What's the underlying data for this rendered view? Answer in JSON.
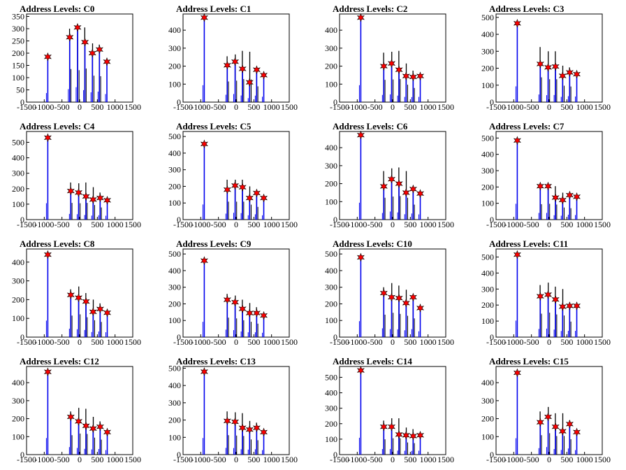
{
  "chart_data": [
    {
      "type": "bar",
      "title": "Address Levels: C0",
      "x_ticks": [
        -1500,
        -1000,
        -500,
        0,
        500,
        1000,
        1500
      ],
      "y_ticks": [
        0,
        50,
        100,
        150,
        200,
        250,
        300,
        350
      ],
      "ylim": [
        0,
        360
      ],
      "peaks": [
        {
          "x": -900,
          "y": 185
        },
        {
          "x": -280,
          "y": 265
        },
        {
          "x": -60,
          "y": 305
        },
        {
          "x": 150,
          "y": 245
        },
        {
          "x": 360,
          "y": 200
        },
        {
          "x": 560,
          "y": 215
        },
        {
          "x": 770,
          "y": 165
        }
      ],
      "background_bars": [
        {
          "x": -285,
          "y": 300
        },
        {
          "x": -55,
          "y": 290
        },
        {
          "x": 145,
          "y": 305
        },
        {
          "x": 365,
          "y": 240
        },
        {
          "x": 555,
          "y": 235
        }
      ]
    },
    {
      "type": "bar",
      "title": "Address Levels: C1",
      "x_ticks": [
        -1500,
        -1000,
        -500,
        0,
        500,
        1000,
        1500
      ],
      "y_ticks": [
        0,
        100,
        200,
        300,
        400
      ],
      "ylim": [
        0,
        490
      ],
      "peaks": [
        {
          "x": -900,
          "y": 470
        },
        {
          "x": -250,
          "y": 205
        },
        {
          "x": -30,
          "y": 225
        },
        {
          "x": 180,
          "y": 185
        },
        {
          "x": 380,
          "y": 110
        },
        {
          "x": 580,
          "y": 180
        },
        {
          "x": 780,
          "y": 150
        }
      ],
      "background_bars": [
        {
          "x": -255,
          "y": 255
        },
        {
          "x": -25,
          "y": 265
        },
        {
          "x": 175,
          "y": 285
        },
        {
          "x": 385,
          "y": 280
        },
        {
          "x": 575,
          "y": 195
        }
      ]
    },
    {
      "type": "bar",
      "title": "Address Levels: C2",
      "x_ticks": [
        -1500,
        -1000,
        -500,
        0,
        500,
        1000,
        1500
      ],
      "y_ticks": [
        0,
        100,
        200,
        300,
        400
      ],
      "ylim": [
        0,
        490
      ],
      "peaks": [
        {
          "x": -900,
          "y": 470
        },
        {
          "x": -250,
          "y": 200
        },
        {
          "x": -30,
          "y": 215
        },
        {
          "x": 180,
          "y": 180
        },
        {
          "x": 380,
          "y": 145
        },
        {
          "x": 580,
          "y": 140
        },
        {
          "x": 780,
          "y": 145
        }
      ],
      "background_bars": [
        {
          "x": -255,
          "y": 275
        },
        {
          "x": -25,
          "y": 280
        },
        {
          "x": 175,
          "y": 285
        },
        {
          "x": 385,
          "y": 215
        },
        {
          "x": 575,
          "y": 175
        }
      ]
    },
    {
      "type": "bar",
      "title": "Address Levels: C3",
      "x_ticks": [
        -1500,
        -1000,
        -500,
        0,
        500,
        1000,
        1500
      ],
      "y_ticks": [
        0,
        100,
        200,
        300,
        400,
        500
      ],
      "ylim": [
        0,
        520
      ],
      "peaks": [
        {
          "x": -900,
          "y": 465
        },
        {
          "x": -250,
          "y": 225
        },
        {
          "x": -30,
          "y": 205
        },
        {
          "x": 180,
          "y": 210
        },
        {
          "x": 380,
          "y": 155
        },
        {
          "x": 580,
          "y": 175
        },
        {
          "x": 780,
          "y": 165
        }
      ],
      "background_bars": [
        {
          "x": -255,
          "y": 325
        },
        {
          "x": -25,
          "y": 300
        },
        {
          "x": 175,
          "y": 300
        },
        {
          "x": 385,
          "y": 215
        },
        {
          "x": 575,
          "y": 205
        }
      ]
    },
    {
      "type": "bar",
      "title": "Address Levels: C4",
      "x_ticks": [
        -1500,
        -1000,
        -500,
        0,
        500,
        1000,
        1500
      ],
      "y_ticks": [
        0,
        100,
        200,
        300,
        400,
        500
      ],
      "ylim": [
        0,
        570
      ],
      "peaks": [
        {
          "x": -900,
          "y": 530
        },
        {
          "x": -250,
          "y": 185
        },
        {
          "x": -30,
          "y": 175
        },
        {
          "x": 180,
          "y": 150
        },
        {
          "x": 380,
          "y": 130
        },
        {
          "x": 580,
          "y": 140
        },
        {
          "x": 780,
          "y": 125
        }
      ],
      "background_bars": [
        {
          "x": -255,
          "y": 240
        },
        {
          "x": -25,
          "y": 235
        },
        {
          "x": 175,
          "y": 240
        },
        {
          "x": 385,
          "y": 210
        },
        {
          "x": 575,
          "y": 175
        }
      ]
    },
    {
      "type": "bar",
      "title": "Address Levels: C5",
      "x_ticks": [
        -1500,
        -1000,
        -500,
        0,
        500,
        1000,
        1500
      ],
      "y_ticks": [
        0,
        100,
        200,
        300,
        400,
        500
      ],
      "ylim": [
        0,
        530
      ],
      "peaks": [
        {
          "x": -900,
          "y": 455
        },
        {
          "x": -250,
          "y": 180
        },
        {
          "x": -30,
          "y": 205
        },
        {
          "x": 180,
          "y": 195
        },
        {
          "x": 380,
          "y": 130
        },
        {
          "x": 580,
          "y": 160
        },
        {
          "x": 780,
          "y": 130
        }
      ],
      "background_bars": [
        {
          "x": -255,
          "y": 240
        },
        {
          "x": -25,
          "y": 240
        },
        {
          "x": 175,
          "y": 240
        },
        {
          "x": 385,
          "y": 200
        },
        {
          "x": 575,
          "y": 170
        }
      ]
    },
    {
      "type": "bar",
      "title": "Address Levels: C6",
      "x_ticks": [
        -1500,
        -1000,
        -500,
        0,
        500,
        1000,
        1500
      ],
      "y_ticks": [
        0,
        100,
        200,
        300,
        400
      ],
      "ylim": [
        0,
        490
      ],
      "peaks": [
        {
          "x": -900,
          "y": 470
        },
        {
          "x": -250,
          "y": 185
        },
        {
          "x": -30,
          "y": 225
        },
        {
          "x": 180,
          "y": 200
        },
        {
          "x": 380,
          "y": 150
        },
        {
          "x": 580,
          "y": 170
        },
        {
          "x": 780,
          "y": 145
        }
      ],
      "background_bars": [
        {
          "x": -255,
          "y": 270
        },
        {
          "x": -25,
          "y": 285
        },
        {
          "x": 175,
          "y": 290
        },
        {
          "x": 385,
          "y": 270
        },
        {
          "x": 575,
          "y": 185
        }
      ]
    },
    {
      "type": "bar",
      "title": "Address Levels: C7",
      "x_ticks": [
        -1500,
        -1000,
        -500,
        0,
        500,
        1000,
        1500
      ],
      "y_ticks": [
        0,
        100,
        200,
        300,
        400,
        500
      ],
      "ylim": [
        0,
        540
      ],
      "peaks": [
        {
          "x": -900,
          "y": 485
        },
        {
          "x": -250,
          "y": 205
        },
        {
          "x": -30,
          "y": 205
        },
        {
          "x": 180,
          "y": 135
        },
        {
          "x": 380,
          "y": 120
        },
        {
          "x": 580,
          "y": 150
        },
        {
          "x": 780,
          "y": 140
        }
      ],
      "background_bars": [
        {
          "x": -255,
          "y": 210
        },
        {
          "x": -25,
          "y": 215
        },
        {
          "x": 175,
          "y": 205
        },
        {
          "x": 385,
          "y": 165
        },
        {
          "x": 575,
          "y": 155
        }
      ]
    },
    {
      "type": "bar",
      "title": "Address Levels: C8",
      "x_ticks": [
        -1500,
        -1000,
        -500,
        0,
        500,
        1000,
        1500
      ],
      "y_ticks": [
        0,
        100,
        200,
        300,
        400
      ],
      "ylim": [
        0,
        470
      ],
      "peaks": [
        {
          "x": -900,
          "y": 440
        },
        {
          "x": -250,
          "y": 225
        },
        {
          "x": -30,
          "y": 210
        },
        {
          "x": 180,
          "y": 190
        },
        {
          "x": 380,
          "y": 135
        },
        {
          "x": 580,
          "y": 150
        },
        {
          "x": 780,
          "y": 130
        }
      ],
      "background_bars": [
        {
          "x": -255,
          "y": 255
        },
        {
          "x": -25,
          "y": 270
        },
        {
          "x": 175,
          "y": 235
        },
        {
          "x": 385,
          "y": 200
        },
        {
          "x": 575,
          "y": 180
        }
      ]
    },
    {
      "type": "bar",
      "title": "Address Levels: C9",
      "x_ticks": [
        -1500,
        -1000,
        -500,
        0,
        500,
        1000,
        1500
      ],
      "y_ticks": [
        0,
        100,
        200,
        300,
        400,
        500
      ],
      "ylim": [
        0,
        530
      ],
      "peaks": [
        {
          "x": -900,
          "y": 460
        },
        {
          "x": -250,
          "y": 225
        },
        {
          "x": -30,
          "y": 210
        },
        {
          "x": 180,
          "y": 170
        },
        {
          "x": 380,
          "y": 145
        },
        {
          "x": 580,
          "y": 145
        },
        {
          "x": 780,
          "y": 130
        }
      ],
      "background_bars": [
        {
          "x": -255,
          "y": 260
        },
        {
          "x": -25,
          "y": 250
        },
        {
          "x": 175,
          "y": 225
        },
        {
          "x": 385,
          "y": 205
        },
        {
          "x": 575,
          "y": 180
        }
      ]
    },
    {
      "type": "bar",
      "title": "Address Levels: C10",
      "x_ticks": [
        -1500,
        -1000,
        -500,
        0,
        500,
        1000,
        1500
      ],
      "y_ticks": [
        0,
        100,
        200,
        300,
        400,
        500
      ],
      "ylim": [
        0,
        530
      ],
      "peaks": [
        {
          "x": -900,
          "y": 480
        },
        {
          "x": -250,
          "y": 265
        },
        {
          "x": -30,
          "y": 240
        },
        {
          "x": 180,
          "y": 235
        },
        {
          "x": 380,
          "y": 205
        },
        {
          "x": 580,
          "y": 240
        },
        {
          "x": 780,
          "y": 175
        }
      ],
      "background_bars": [
        {
          "x": -255,
          "y": 300
        },
        {
          "x": -25,
          "y": 325
        },
        {
          "x": 175,
          "y": 310
        },
        {
          "x": 385,
          "y": 285
        },
        {
          "x": 575,
          "y": 250
        }
      ]
    },
    {
      "type": "bar",
      "title": "Address Levels: C11",
      "x_ticks": [
        -1500,
        -1000,
        -500,
        0,
        500,
        1000,
        1500
      ],
      "y_ticks": [
        0,
        100,
        200,
        300,
        400,
        500
      ],
      "ylim": [
        0,
        550
      ],
      "peaks": [
        {
          "x": -900,
          "y": 515
        },
        {
          "x": -250,
          "y": 255
        },
        {
          "x": -30,
          "y": 265
        },
        {
          "x": 180,
          "y": 235
        },
        {
          "x": 380,
          "y": 190
        },
        {
          "x": 580,
          "y": 195
        },
        {
          "x": 780,
          "y": 195
        }
      ],
      "background_bars": [
        {
          "x": -255,
          "y": 325
        },
        {
          "x": -25,
          "y": 340
        },
        {
          "x": 175,
          "y": 315
        },
        {
          "x": 385,
          "y": 300
        },
        {
          "x": 575,
          "y": 215
        }
      ]
    },
    {
      "type": "bar",
      "title": "Address Levels: C12",
      "x_ticks": [
        -1500,
        -1000,
        -500,
        0,
        500,
        1000,
        1500
      ],
      "y_ticks": [
        0,
        100,
        200,
        300,
        400
      ],
      "ylim": [
        0,
        490
      ],
      "peaks": [
        {
          "x": -900,
          "y": 460
        },
        {
          "x": -250,
          "y": 210
        },
        {
          "x": -30,
          "y": 185
        },
        {
          "x": 180,
          "y": 160
        },
        {
          "x": 380,
          "y": 145
        },
        {
          "x": 580,
          "y": 155
        },
        {
          "x": 780,
          "y": 125
        }
      ],
      "background_bars": [
        {
          "x": -255,
          "y": 240
        },
        {
          "x": -25,
          "y": 260
        },
        {
          "x": 175,
          "y": 255
        },
        {
          "x": 385,
          "y": 210
        },
        {
          "x": 575,
          "y": 185
        }
      ]
    },
    {
      "type": "bar",
      "title": "Address Levels: C13",
      "x_ticks": [
        -1500,
        -1000,
        -500,
        0,
        500,
        1000,
        1500
      ],
      "y_ticks": [
        0,
        100,
        200,
        300,
        400,
        500
      ],
      "ylim": [
        0,
        510
      ],
      "peaks": [
        {
          "x": -900,
          "y": 480
        },
        {
          "x": -250,
          "y": 195
        },
        {
          "x": -30,
          "y": 190
        },
        {
          "x": 180,
          "y": 155
        },
        {
          "x": 380,
          "y": 145
        },
        {
          "x": 580,
          "y": 155
        },
        {
          "x": 780,
          "y": 130
        }
      ],
      "background_bars": [
        {
          "x": -255,
          "y": 250
        },
        {
          "x": -25,
          "y": 245
        },
        {
          "x": 175,
          "y": 240
        },
        {
          "x": 385,
          "y": 195
        },
        {
          "x": 575,
          "y": 185
        }
      ]
    },
    {
      "type": "bar",
      "title": "Address Levels: C14",
      "x_ticks": [
        -1500,
        -1000,
        -500,
        0,
        500,
        1000,
        1500
      ],
      "y_ticks": [
        0,
        100,
        200,
        300,
        400,
        500
      ],
      "ylim": [
        0,
        570
      ],
      "peaks": [
        {
          "x": -900,
          "y": 545
        },
        {
          "x": -250,
          "y": 180
        },
        {
          "x": -30,
          "y": 180
        },
        {
          "x": 180,
          "y": 130
        },
        {
          "x": 380,
          "y": 125
        },
        {
          "x": 580,
          "y": 120
        },
        {
          "x": 780,
          "y": 125
        }
      ],
      "background_bars": [
        {
          "x": -255,
          "y": 220
        },
        {
          "x": -25,
          "y": 235
        },
        {
          "x": 175,
          "y": 235
        },
        {
          "x": 385,
          "y": 175
        },
        {
          "x": 575,
          "y": 165
        }
      ]
    },
    {
      "type": "bar",
      "title": "Address Levels: C15",
      "x_ticks": [
        -1500,
        -1000,
        -500,
        0,
        500,
        1000,
        1500
      ],
      "y_ticks": [
        0,
        100,
        200,
        300,
        400
      ],
      "ylim": [
        0,
        490
      ],
      "peaks": [
        {
          "x": -900,
          "y": 455
        },
        {
          "x": -250,
          "y": 180
        },
        {
          "x": -30,
          "y": 210
        },
        {
          "x": 180,
          "y": 155
        },
        {
          "x": 380,
          "y": 130
        },
        {
          "x": 580,
          "y": 170
        },
        {
          "x": 780,
          "y": 125
        }
      ],
      "background_bars": [
        {
          "x": -255,
          "y": 240
        },
        {
          "x": -25,
          "y": 265
        },
        {
          "x": 175,
          "y": 230
        },
        {
          "x": 385,
          "y": 230
        },
        {
          "x": 575,
          "y": 190
        }
      ]
    }
  ]
}
